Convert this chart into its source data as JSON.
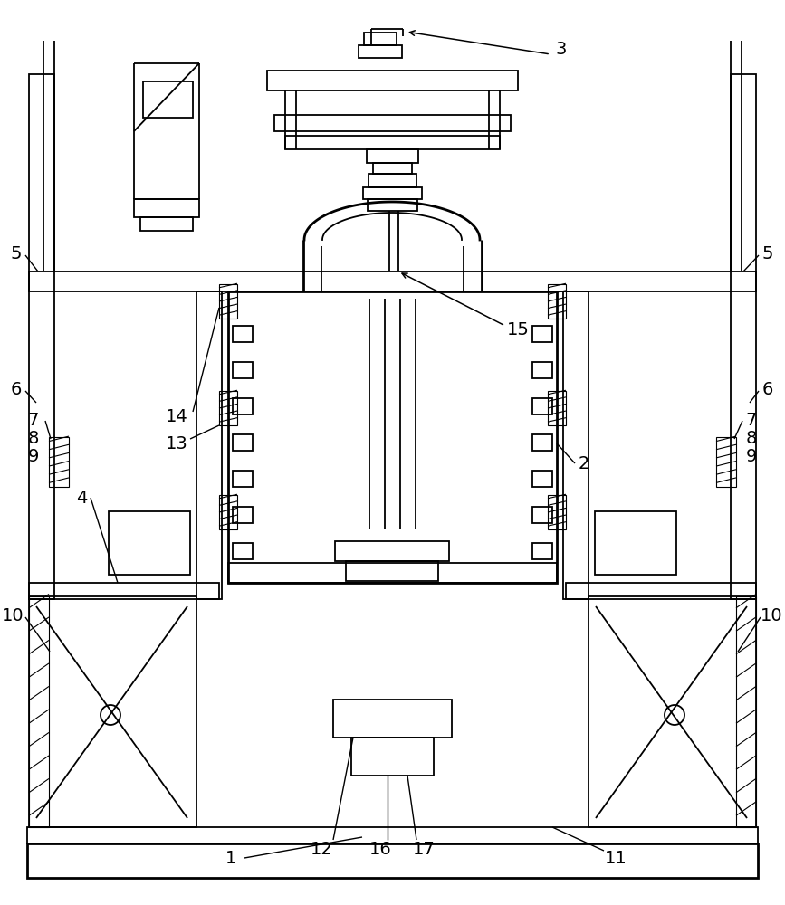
{
  "bg_color": "#ffffff",
  "lc": "#000000",
  "lw": 1.3,
  "tlw": 2.0
}
